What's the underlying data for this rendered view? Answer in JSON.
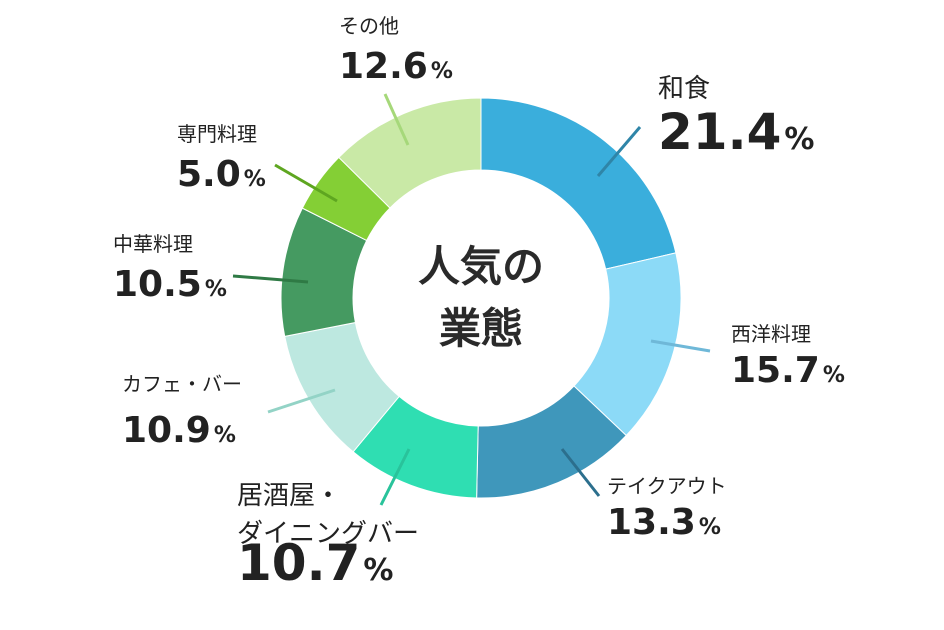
{
  "chart_data": {
    "type": "pie",
    "title": [
      "人気の",
      "業態"
    ],
    "unit": "%",
    "slices": [
      {
        "name": "和食",
        "value": 21.4,
        "color": "#3aaedc"
      },
      {
        "name": "西洋料理",
        "value": 15.7,
        "color": "#8cdaf7"
      },
      {
        "name": "テイクアウト",
        "value": 13.3,
        "color": "#3f97bb"
      },
      {
        "name": [
          "居酒屋・",
          "ダイニングバー"
        ],
        "value": 10.7,
        "color": "#2fdeb2"
      },
      {
        "name": "カフェ・バー",
        "value": 10.9,
        "color": "#bde8e0"
      },
      {
        "name": "中華料理",
        "value": 10.5,
        "color": "#459a61"
      },
      {
        "name": "専門料理",
        "value": 5.0,
        "color": "#84cf35"
      },
      {
        "name": "その他",
        "value": 12.6,
        "color": "#c9e9a6"
      }
    ]
  }
}
